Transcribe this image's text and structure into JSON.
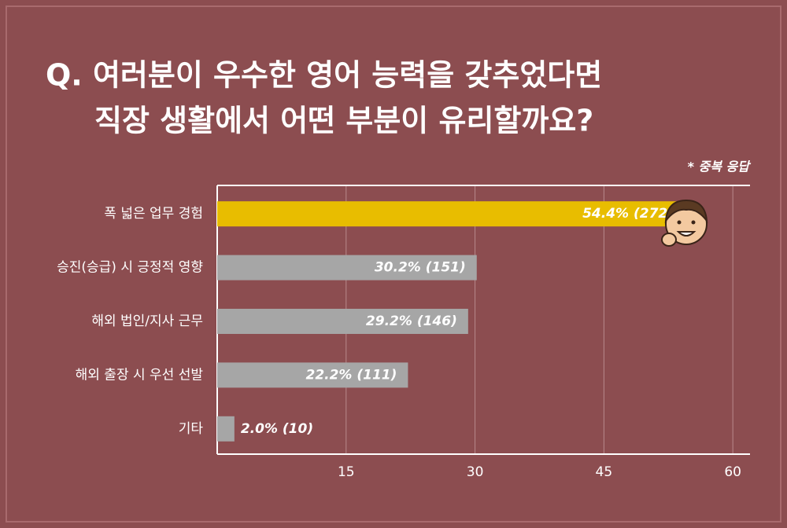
{
  "chart_data": {
    "type": "bar",
    "orientation": "horizontal",
    "title": [
      "Q. 여러분이 우수한 영어 능력을 갖추었다면",
      "직장 생활에서 어떤 부분이 유리할까요?"
    ],
    "subtitle": "* 중복 응답",
    "categories": [
      "폭 넓은 업무 경험",
      "승진(승급) 시 긍정적 영향",
      "해외 법인/지사 근무",
      "해외 출장 시 우선 선발",
      "기타"
    ],
    "values": [
      54.4,
      30.2,
      29.2,
      22.2,
      2.0
    ],
    "value_labels": [
      "54.4% (272)",
      "30.2% (151)",
      "29.2% (146)",
      "22.2% (111)",
      "2.0% (10)"
    ],
    "colors": [
      "#e8bd00",
      "#a6a6a6",
      "#a6a6a6",
      "#a6a6a6",
      "#a6a6a6"
    ],
    "xlim": [
      0,
      62
    ],
    "xticks": [
      15,
      30,
      45,
      60
    ],
    "grid": true
  }
}
